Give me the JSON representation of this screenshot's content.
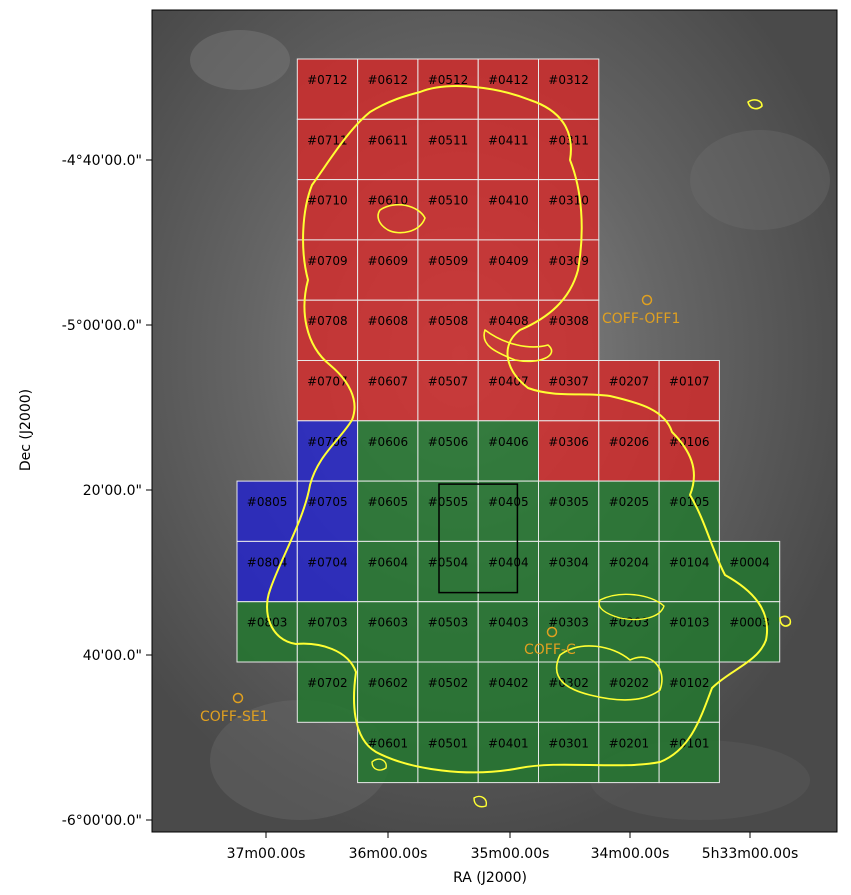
{
  "chart_data": {
    "type": "mosaic-map",
    "xlabel": "RA (J2000)",
    "ylabel": "Dec (J2000)",
    "x_ticks": [
      "37m00.00s",
      "36m00.00s",
      "35m00.00s",
      "34m00.00s",
      "5h33m00.00s"
    ],
    "y_ticks": [
      "-4°40'00.0\"",
      "-5°00'00.0\"",
      "20'00.0\"",
      "40'00.0\"",
      "-6°00'00.0\""
    ],
    "colors": {
      "red": "#d42a2a",
      "green": "#1f7a2c",
      "blue": "#2222cc",
      "contour": "#ffff33",
      "grid": "#e8e8e8",
      "off_marker": "#e0a020",
      "background": "#5a5a5a"
    },
    "tiles": [
      {
        "id": "#0712",
        "col": 7,
        "row": 12,
        "group": "red"
      },
      {
        "id": "#0612",
        "col": 6,
        "row": 12,
        "group": "red"
      },
      {
        "id": "#0512",
        "col": 5,
        "row": 12,
        "group": "red"
      },
      {
        "id": "#0412",
        "col": 4,
        "row": 12,
        "group": "red"
      },
      {
        "id": "#0312",
        "col": 3,
        "row": 12,
        "group": "red"
      },
      {
        "id": "#0711",
        "col": 7,
        "row": 11,
        "group": "red"
      },
      {
        "id": "#0611",
        "col": 6,
        "row": 11,
        "group": "red"
      },
      {
        "id": "#0511",
        "col": 5,
        "row": 11,
        "group": "red"
      },
      {
        "id": "#0411",
        "col": 4,
        "row": 11,
        "group": "red"
      },
      {
        "id": "#0311",
        "col": 3,
        "row": 11,
        "group": "red"
      },
      {
        "id": "#0710",
        "col": 7,
        "row": 10,
        "group": "red"
      },
      {
        "id": "#0610",
        "col": 6,
        "row": 10,
        "group": "red"
      },
      {
        "id": "#0510",
        "col": 5,
        "row": 10,
        "group": "red"
      },
      {
        "id": "#0410",
        "col": 4,
        "row": 10,
        "group": "red"
      },
      {
        "id": "#0310",
        "col": 3,
        "row": 10,
        "group": "red"
      },
      {
        "id": "#0709",
        "col": 7,
        "row": 9,
        "group": "red"
      },
      {
        "id": "#0609",
        "col": 6,
        "row": 9,
        "group": "red"
      },
      {
        "id": "#0509",
        "col": 5,
        "row": 9,
        "group": "red"
      },
      {
        "id": "#0409",
        "col": 4,
        "row": 9,
        "group": "red"
      },
      {
        "id": "#0309",
        "col": 3,
        "row": 9,
        "group": "red"
      },
      {
        "id": "#0708",
        "col": 7,
        "row": 8,
        "group": "red"
      },
      {
        "id": "#0608",
        "col": 6,
        "row": 8,
        "group": "red"
      },
      {
        "id": "#0508",
        "col": 5,
        "row": 8,
        "group": "red"
      },
      {
        "id": "#0408",
        "col": 4,
        "row": 8,
        "group": "red"
      },
      {
        "id": "#0308",
        "col": 3,
        "row": 8,
        "group": "red"
      },
      {
        "id": "#0707",
        "col": 7,
        "row": 7,
        "group": "red"
      },
      {
        "id": "#0607",
        "col": 6,
        "row": 7,
        "group": "red"
      },
      {
        "id": "#0507",
        "col": 5,
        "row": 7,
        "group": "red"
      },
      {
        "id": "#0407",
        "col": 4,
        "row": 7,
        "group": "red"
      },
      {
        "id": "#0307",
        "col": 3,
        "row": 7,
        "group": "red"
      },
      {
        "id": "#0207",
        "col": 2,
        "row": 7,
        "group": "red"
      },
      {
        "id": "#0107",
        "col": 1,
        "row": 7,
        "group": "red"
      },
      {
        "id": "#0706",
        "col": 7,
        "row": 6,
        "group": "blue"
      },
      {
        "id": "#0606",
        "col": 6,
        "row": 6,
        "group": "green"
      },
      {
        "id": "#0506",
        "col": 5,
        "row": 6,
        "group": "green"
      },
      {
        "id": "#0406",
        "col": 4,
        "row": 6,
        "group": "green"
      },
      {
        "id": "#0306",
        "col": 3,
        "row": 6,
        "group": "red"
      },
      {
        "id": "#0206",
        "col": 2,
        "row": 6,
        "group": "red"
      },
      {
        "id": "#0106",
        "col": 1,
        "row": 6,
        "group": "red"
      },
      {
        "id": "#0805",
        "col": 8,
        "row": 5,
        "group": "blue"
      },
      {
        "id": "#0705",
        "col": 7,
        "row": 5,
        "group": "blue"
      },
      {
        "id": "#0605",
        "col": 6,
        "row": 5,
        "group": "green"
      },
      {
        "id": "#0505",
        "col": 5,
        "row": 5,
        "group": "green"
      },
      {
        "id": "#0405",
        "col": 4,
        "row": 5,
        "group": "green"
      },
      {
        "id": "#0305",
        "col": 3,
        "row": 5,
        "group": "green"
      },
      {
        "id": "#0205",
        "col": 2,
        "row": 5,
        "group": "green"
      },
      {
        "id": "#0105",
        "col": 1,
        "row": 5,
        "group": "green"
      },
      {
        "id": "#0804",
        "col": 8,
        "row": 4,
        "group": "blue"
      },
      {
        "id": "#0704",
        "col": 7,
        "row": 4,
        "group": "blue"
      },
      {
        "id": "#0604",
        "col": 6,
        "row": 4,
        "group": "green"
      },
      {
        "id": "#0504",
        "col": 5,
        "row": 4,
        "group": "green"
      },
      {
        "id": "#0404",
        "col": 4,
        "row": 4,
        "group": "green"
      },
      {
        "id": "#0304",
        "col": 3,
        "row": 4,
        "group": "green"
      },
      {
        "id": "#0204",
        "col": 2,
        "row": 4,
        "group": "green"
      },
      {
        "id": "#0104",
        "col": 1,
        "row": 4,
        "group": "green"
      },
      {
        "id": "#0004",
        "col": 0,
        "row": 4,
        "group": "green"
      },
      {
        "id": "#0803",
        "col": 8,
        "row": 3,
        "group": "green"
      },
      {
        "id": "#0703",
        "col": 7,
        "row": 3,
        "group": "green"
      },
      {
        "id": "#0603",
        "col": 6,
        "row": 3,
        "group": "green"
      },
      {
        "id": "#0503",
        "col": 5,
        "row": 3,
        "group": "green"
      },
      {
        "id": "#0403",
        "col": 4,
        "row": 3,
        "group": "green"
      },
      {
        "id": "#0303",
        "col": 3,
        "row": 3,
        "group": "green"
      },
      {
        "id": "#0203",
        "col": 2,
        "row": 3,
        "group": "green"
      },
      {
        "id": "#0103",
        "col": 1,
        "row": 3,
        "group": "green"
      },
      {
        "id": "#0003",
        "col": 0,
        "row": 3,
        "group": "green"
      },
      {
        "id": "#0702",
        "col": 7,
        "row": 2,
        "group": "green"
      },
      {
        "id": "#0602",
        "col": 6,
        "row": 2,
        "group": "green"
      },
      {
        "id": "#0502",
        "col": 5,
        "row": 2,
        "group": "green"
      },
      {
        "id": "#0402",
        "col": 4,
        "row": 2,
        "group": "green"
      },
      {
        "id": "#0302",
        "col": 3,
        "row": 2,
        "group": "green"
      },
      {
        "id": "#0202",
        "col": 2,
        "row": 2,
        "group": "green"
      },
      {
        "id": "#0102",
        "col": 1,
        "row": 2,
        "group": "green"
      },
      {
        "id": "#0601",
        "col": 6,
        "row": 1,
        "group": "green"
      },
      {
        "id": "#0501",
        "col": 5,
        "row": 1,
        "group": "green"
      },
      {
        "id": "#0401",
        "col": 4,
        "row": 1,
        "group": "green"
      },
      {
        "id": "#0301",
        "col": 3,
        "row": 1,
        "group": "green"
      },
      {
        "id": "#0201",
        "col": 2,
        "row": 1,
        "group": "green"
      },
      {
        "id": "#0101",
        "col": 1,
        "row": 1,
        "group": "green"
      }
    ],
    "off_positions": [
      {
        "name": "COFF-OFF1"
      },
      {
        "name": "COFF-C"
      },
      {
        "name": "COFF-SE1"
      }
    ],
    "highlight_box": {
      "cols": [
        5,
        4
      ],
      "rows": [
        5,
        4
      ]
    }
  }
}
